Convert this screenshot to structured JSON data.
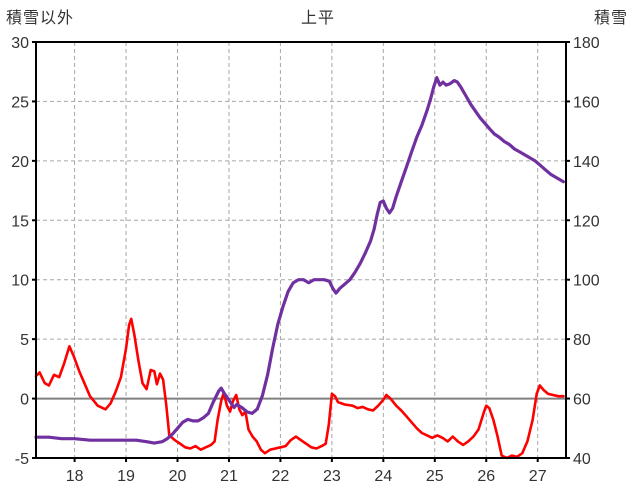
{
  "chart_data": {
    "type": "line",
    "title": "上平",
    "grid": true,
    "left_axis": {
      "label": "積雪以外",
      "min": -5,
      "max": 30,
      "ticks": [
        30,
        25,
        20,
        15,
        10,
        5,
        0,
        -5
      ],
      "zero_line": 0
    },
    "right_axis": {
      "label": "積雪",
      "min": 40,
      "max": 180,
      "ticks": [
        180,
        160,
        140,
        120,
        100,
        80,
        60,
        40
      ]
    },
    "x_axis": {
      "min": 17.25,
      "max": 27.55,
      "ticks": [
        18,
        19,
        20,
        21,
        22,
        23,
        24,
        25,
        26,
        27
      ]
    },
    "colors": {
      "grid": "#a6a6a6",
      "zero": "#7f7f7f",
      "border": "#000000"
    },
    "series": [
      {
        "name": "積雪以外",
        "axis": "left",
        "color": "#ff0000",
        "width": 2.6,
        "points": [
          [
            17.25,
            1.9
          ],
          [
            17.32,
            2.2
          ],
          [
            17.42,
            1.3
          ],
          [
            17.5,
            1.1
          ],
          [
            17.6,
            2.0
          ],
          [
            17.7,
            1.8
          ],
          [
            17.8,
            3.0
          ],
          [
            17.9,
            4.4
          ],
          [
            17.98,
            3.6
          ],
          [
            18.1,
            2.2
          ],
          [
            18.2,
            1.2
          ],
          [
            18.3,
            0.2
          ],
          [
            18.45,
            -0.6
          ],
          [
            18.6,
            -0.9
          ],
          [
            18.7,
            -0.4
          ],
          [
            18.8,
            0.6
          ],
          [
            18.9,
            1.8
          ],
          [
            19.0,
            4.2
          ],
          [
            19.06,
            6.2
          ],
          [
            19.1,
            6.7
          ],
          [
            19.16,
            5.4
          ],
          [
            19.24,
            3.2
          ],
          [
            19.32,
            1.3
          ],
          [
            19.4,
            0.8
          ],
          [
            19.48,
            2.4
          ],
          [
            19.55,
            2.3
          ],
          [
            19.6,
            1.2
          ],
          [
            19.66,
            2.1
          ],
          [
            19.72,
            1.6
          ],
          [
            19.78,
            -0.5
          ],
          [
            19.84,
            -3.1
          ],
          [
            19.95,
            -3.5
          ],
          [
            20.05,
            -3.8
          ],
          [
            20.15,
            -4.1
          ],
          [
            20.25,
            -4.2
          ],
          [
            20.35,
            -4.0
          ],
          [
            20.45,
            -4.3
          ],
          [
            20.55,
            -4.1
          ],
          [
            20.65,
            -3.9
          ],
          [
            20.72,
            -3.6
          ],
          [
            20.78,
            -1.8
          ],
          [
            20.85,
            -0.2
          ],
          [
            20.9,
            0.5
          ],
          [
            20.96,
            -0.6
          ],
          [
            21.02,
            -1.1
          ],
          [
            21.08,
            -0.2
          ],
          [
            21.14,
            0.3
          ],
          [
            21.2,
            -0.9
          ],
          [
            21.26,
            -1.4
          ],
          [
            21.32,
            -1.1
          ],
          [
            21.38,
            -2.6
          ],
          [
            21.46,
            -3.2
          ],
          [
            21.54,
            -3.6
          ],
          [
            21.62,
            -4.3
          ],
          [
            21.7,
            -4.6
          ],
          [
            21.8,
            -4.3
          ],
          [
            21.9,
            -4.2
          ],
          [
            22.0,
            -4.1
          ],
          [
            22.1,
            -4.0
          ],
          [
            22.2,
            -3.5
          ],
          [
            22.3,
            -3.2
          ],
          [
            22.4,
            -3.5
          ],
          [
            22.5,
            -3.8
          ],
          [
            22.6,
            -4.1
          ],
          [
            22.7,
            -4.2
          ],
          [
            22.8,
            -4.0
          ],
          [
            22.88,
            -3.8
          ],
          [
            22.94,
            -2.2
          ],
          [
            23.0,
            0.4
          ],
          [
            23.06,
            0.2
          ],
          [
            23.12,
            -0.3
          ],
          [
            23.25,
            -0.5
          ],
          [
            23.4,
            -0.6
          ],
          [
            23.5,
            -0.8
          ],
          [
            23.6,
            -0.7
          ],
          [
            23.7,
            -0.9
          ],
          [
            23.8,
            -1.0
          ],
          [
            23.9,
            -0.6
          ],
          [
            24.0,
            -0.1
          ],
          [
            24.06,
            0.3
          ],
          [
            24.14,
            0.0
          ],
          [
            24.25,
            -0.6
          ],
          [
            24.35,
            -1.0
          ],
          [
            24.45,
            -1.5
          ],
          [
            24.55,
            -2.0
          ],
          [
            24.65,
            -2.5
          ],
          [
            24.75,
            -2.9
          ],
          [
            24.85,
            -3.1
          ],
          [
            24.95,
            -3.3
          ],
          [
            25.05,
            -3.1
          ],
          [
            25.15,
            -3.3
          ],
          [
            25.25,
            -3.6
          ],
          [
            25.35,
            -3.2
          ],
          [
            25.45,
            -3.6
          ],
          [
            25.55,
            -3.9
          ],
          [
            25.65,
            -3.6
          ],
          [
            25.75,
            -3.2
          ],
          [
            25.85,
            -2.6
          ],
          [
            25.95,
            -1.2
          ],
          [
            26.0,
            -0.6
          ],
          [
            26.06,
            -0.8
          ],
          [
            26.14,
            -1.8
          ],
          [
            26.22,
            -3.2
          ],
          [
            26.3,
            -4.8
          ],
          [
            26.4,
            -5.0
          ],
          [
            26.5,
            -4.8
          ],
          [
            26.6,
            -4.9
          ],
          [
            26.7,
            -4.6
          ],
          [
            26.8,
            -3.6
          ],
          [
            26.9,
            -1.8
          ],
          [
            26.98,
            0.4
          ],
          [
            27.04,
            1.1
          ],
          [
            27.12,
            0.7
          ],
          [
            27.2,
            0.4
          ],
          [
            27.3,
            0.3
          ],
          [
            27.4,
            0.2
          ],
          [
            27.5,
            0.2
          ]
        ]
      },
      {
        "name": "積雪",
        "axis": "right",
        "color": "#7030a0",
        "width": 3.2,
        "points": [
          [
            17.25,
            47
          ],
          [
            17.5,
            47
          ],
          [
            17.75,
            46.5
          ],
          [
            18.0,
            46.5
          ],
          [
            18.3,
            46
          ],
          [
            18.6,
            46
          ],
          [
            18.9,
            46
          ],
          [
            19.2,
            46
          ],
          [
            19.4,
            45.5
          ],
          [
            19.55,
            45
          ],
          [
            19.7,
            45.5
          ],
          [
            19.8,
            46.5
          ],
          [
            19.9,
            48
          ],
          [
            20.0,
            50
          ],
          [
            20.1,
            52
          ],
          [
            20.2,
            53
          ],
          [
            20.3,
            52.5
          ],
          [
            20.4,
            52.5
          ],
          [
            20.5,
            53.5
          ],
          [
            20.6,
            55
          ],
          [
            20.7,
            59
          ],
          [
            20.8,
            62.5
          ],
          [
            20.85,
            63.5
          ],
          [
            20.9,
            62
          ],
          [
            21.0,
            59.5
          ],
          [
            21.1,
            57
          ],
          [
            21.15,
            58
          ],
          [
            21.25,
            57
          ],
          [
            21.35,
            55.5
          ],
          [
            21.45,
            55
          ],
          [
            21.55,
            56.5
          ],
          [
            21.65,
            61
          ],
          [
            21.75,
            68
          ],
          [
            21.85,
            77
          ],
          [
            21.95,
            85
          ],
          [
            22.05,
            91
          ],
          [
            22.15,
            96
          ],
          [
            22.25,
            99
          ],
          [
            22.35,
            100
          ],
          [
            22.45,
            100
          ],
          [
            22.55,
            99
          ],
          [
            22.65,
            100
          ],
          [
            22.75,
            100
          ],
          [
            22.85,
            100
          ],
          [
            22.95,
            99.5
          ],
          [
            23.02,
            97
          ],
          [
            23.08,
            95.5
          ],
          [
            23.15,
            97
          ],
          [
            23.25,
            98.5
          ],
          [
            23.35,
            100
          ],
          [
            23.45,
            102.5
          ],
          [
            23.55,
            105.5
          ],
          [
            23.65,
            109
          ],
          [
            23.75,
            113
          ],
          [
            23.82,
            117
          ],
          [
            23.88,
            122
          ],
          [
            23.94,
            126
          ],
          [
            24.0,
            126.5
          ],
          [
            24.06,
            124
          ],
          [
            24.12,
            122.5
          ],
          [
            24.18,
            124
          ],
          [
            24.25,
            128
          ],
          [
            24.35,
            133
          ],
          [
            24.45,
            138
          ],
          [
            24.55,
            143
          ],
          [
            24.65,
            148
          ],
          [
            24.75,
            152
          ],
          [
            24.85,
            157
          ],
          [
            24.92,
            161
          ],
          [
            24.98,
            165
          ],
          [
            25.04,
            168
          ],
          [
            25.1,
            165.5
          ],
          [
            25.16,
            166.5
          ],
          [
            25.22,
            165.5
          ],
          [
            25.3,
            166
          ],
          [
            25.38,
            167
          ],
          [
            25.44,
            166.5
          ],
          [
            25.5,
            165
          ],
          [
            25.6,
            162
          ],
          [
            25.7,
            159
          ],
          [
            25.78,
            157
          ],
          [
            25.88,
            154.5
          ],
          [
            25.98,
            152.5
          ],
          [
            26.08,
            150.5
          ],
          [
            26.16,
            149
          ],
          [
            26.25,
            148
          ],
          [
            26.35,
            146.5
          ],
          [
            26.45,
            145.5
          ],
          [
            26.55,
            144
          ],
          [
            26.65,
            143
          ],
          [
            26.75,
            142
          ],
          [
            26.85,
            141
          ],
          [
            26.95,
            140
          ],
          [
            27.05,
            138.5
          ],
          [
            27.15,
            137
          ],
          [
            27.25,
            135.5
          ],
          [
            27.35,
            134.5
          ],
          [
            27.45,
            133.5
          ],
          [
            27.5,
            133
          ]
        ]
      }
    ]
  }
}
